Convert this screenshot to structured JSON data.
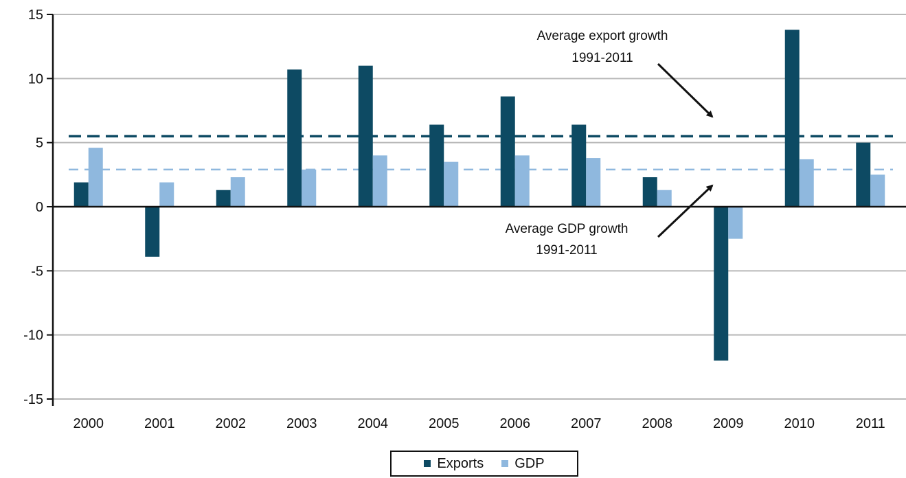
{
  "chart_data": {
    "type": "bar",
    "categories": [
      "2000",
      "2001",
      "2002",
      "2003",
      "2004",
      "2005",
      "2006",
      "2007",
      "2008",
      "2009",
      "2010",
      "2011"
    ],
    "series": [
      {
        "name": "Exports",
        "color": "#0d4a63",
        "values": [
          1.9,
          -3.9,
          1.3,
          10.7,
          11.0,
          6.4,
          8.6,
          6.4,
          2.3,
          -12.0,
          13.8,
          5.0
        ]
      },
      {
        "name": "GDP",
        "color": "#8fb8de",
        "values": [
          4.6,
          1.9,
          2.3,
          2.9,
          4.0,
          3.5,
          4.0,
          3.8,
          1.3,
          -2.5,
          3.7,
          2.5
        ]
      }
    ],
    "ylim": [
      -15,
      15
    ],
    "yticks": [
      15,
      10,
      5,
      0,
      -5,
      -10,
      -15
    ],
    "grid": true,
    "legend_position": "bottom-center",
    "reference_lines": [
      {
        "series": "Exports",
        "value": 5.5,
        "style": "dashed",
        "color": "#0d4a63"
      },
      {
        "series": "GDP",
        "value": 2.9,
        "style": "dashed",
        "color": "#8fb8de"
      }
    ],
    "annotations": [
      {
        "line1": "Average export growth",
        "line2": "1991-2011"
      },
      {
        "line1": "Average GDP growth",
        "line2": "1991-2011"
      }
    ]
  }
}
